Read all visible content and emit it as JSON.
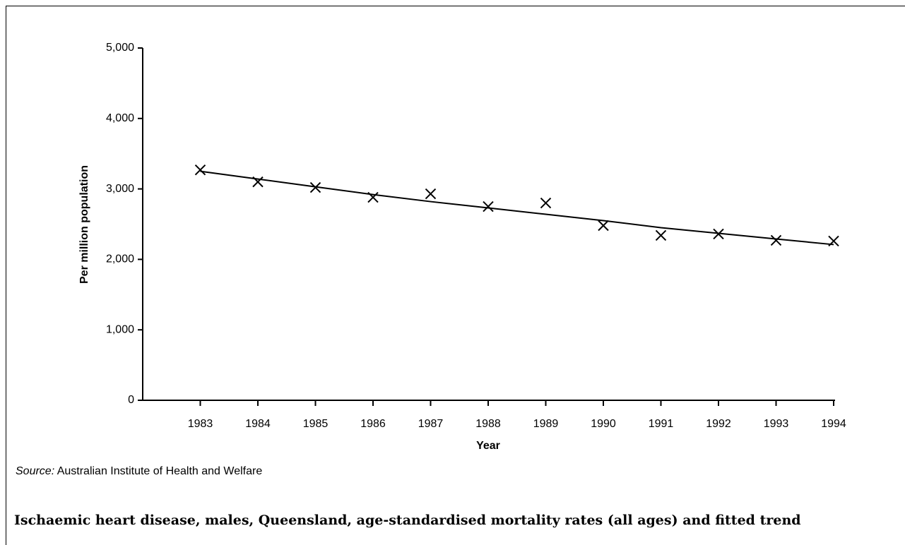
{
  "chart_data": {
    "type": "line",
    "x": [
      1983,
      1984,
      1985,
      1986,
      1987,
      1988,
      1989,
      1990,
      1991,
      1992,
      1993,
      1994
    ],
    "series": [
      {
        "color": "#000000",
        "mode": "markers",
        "marker": "x",
        "values": [
          3270,
          3100,
          3020,
          2880,
          2930,
          2750,
          2800,
          2480,
          2340,
          2360,
          2270,
          2260
        ]
      },
      {
        "color": "#000000",
        "mode": "line",
        "values": [
          3250,
          3140,
          3030,
          2920,
          2820,
          2730,
          2640,
          2550,
          2450,
          2370,
          2290,
          2210
        ]
      }
    ],
    "xlim": [
      1982,
      1994
    ],
    "xticks": [
      1983,
      1984,
      1985,
      1986,
      1987,
      1988,
      1989,
      1990,
      1991,
      1992,
      1993,
      1994
    ],
    "ylim": [
      0,
      5000
    ],
    "yticks": [
      0,
      {
        "value": 1000,
        "label": "1,000"
      },
      {
        "value": 2000,
        "label": "2,000"
      },
      {
        "value": 3000,
        "label": "3,000"
      },
      {
        "value": 4000,
        "label": "4,000"
      },
      {
        "value": 5000,
        "label": "5,000"
      }
    ],
    "xlabel": "Year",
    "ylabel": "Per million population",
    "source_label": "Source:",
    "source": "Australian Institute of Health and Welfare",
    "caption": "Ischaemic heart disease, males, Queensland, age-standardised mortality rates (all ages) and fitted trend",
    "grid": false
  }
}
